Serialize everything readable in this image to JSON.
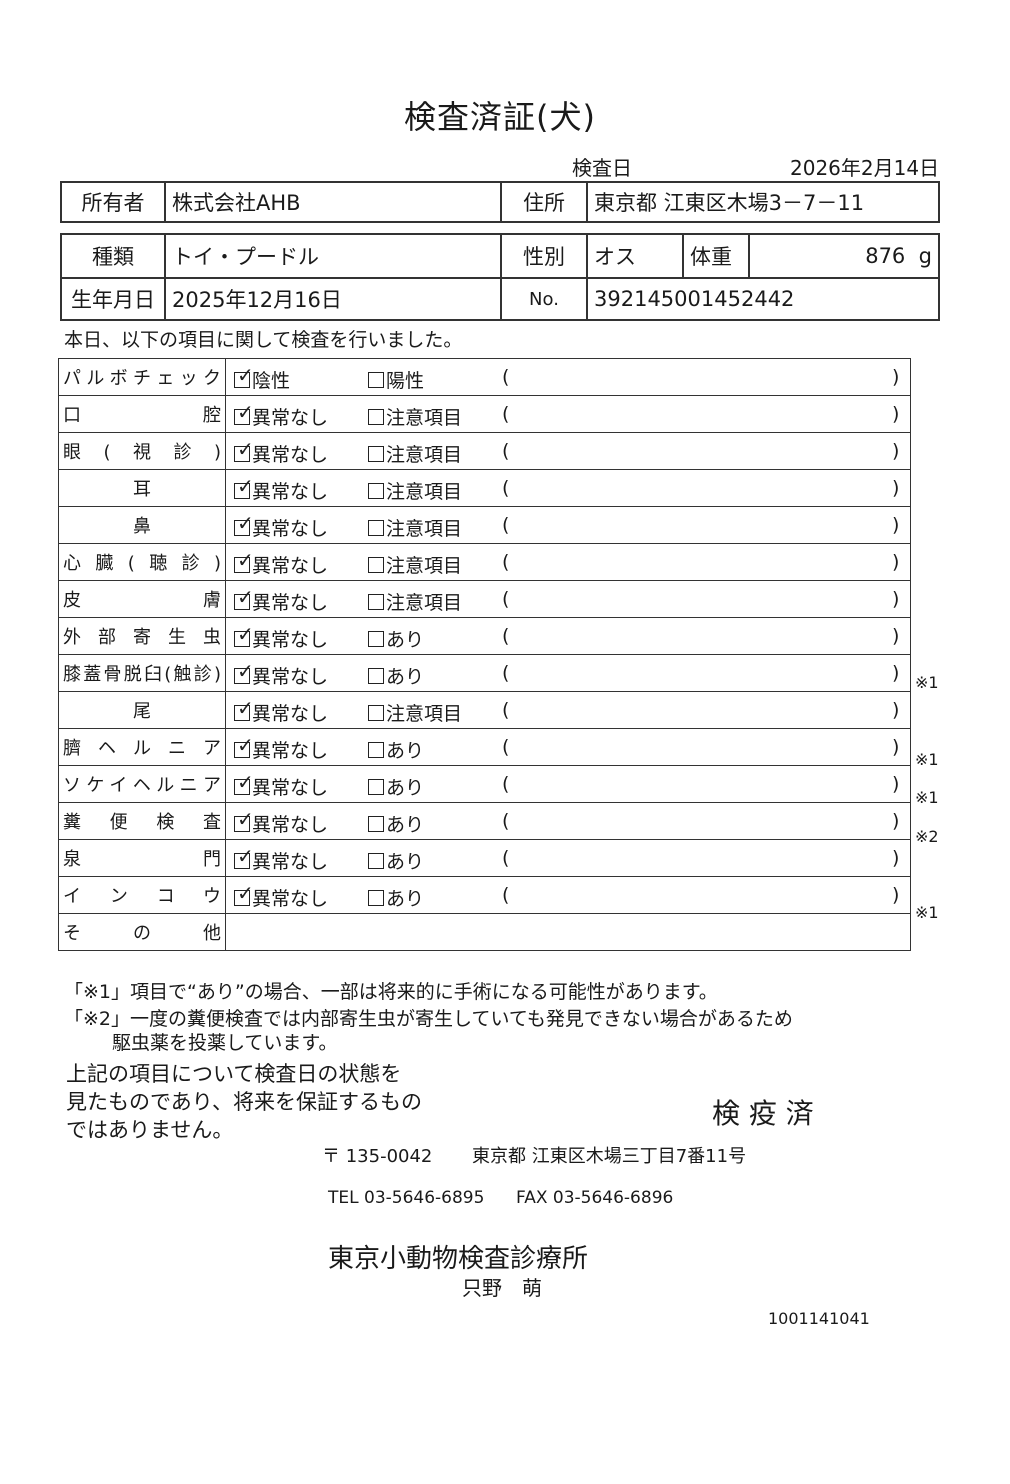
{
  "title": "検査済証(犬)",
  "exam_date_label": "検査日",
  "exam_date": "2026年2月14日",
  "owner": {
    "label": "所有者",
    "value": "株式会社AHB",
    "address_label": "住所",
    "address": "東京都 江東区木場3－7－11"
  },
  "pet": {
    "breed_label": "種類",
    "breed": "トイ・プードル",
    "sex_label": "性別",
    "sex": "オス",
    "weight_label": "体重",
    "weight": "876",
    "weight_unit": "g",
    "birth_label": "生年月日",
    "birth": "2025年12月16日",
    "no_label": "No.",
    "no": "392145001452442"
  },
  "intro": "本日、以下の項目に関して検査を行いました。",
  "checks": [
    {
      "label": "パルボチェック",
      "opt1": "陰性",
      "opt2": "陽性",
      "checked": 1,
      "note": ""
    },
    {
      "label": "口腔",
      "opt1": "異常なし",
      "opt2": "注意項目",
      "checked": 1,
      "note": ""
    },
    {
      "label": "眼(視診)",
      "opt1": "異常なし",
      "opt2": "注意項目",
      "checked": 1,
      "note": ""
    },
    {
      "label": "耳",
      "opt1": "異常なし",
      "opt2": "注意項目",
      "checked": 1,
      "note": ""
    },
    {
      "label": "鼻",
      "opt1": "異常なし",
      "opt2": "注意項目",
      "checked": 1,
      "note": ""
    },
    {
      "label": "心臓(聴診)",
      "opt1": "異常なし",
      "opt2": "注意項目",
      "checked": 1,
      "note": ""
    },
    {
      "label": "皮膚",
      "opt1": "異常なし",
      "opt2": "注意項目",
      "checked": 1,
      "note": ""
    },
    {
      "label": "外部寄生虫",
      "opt1": "異常なし",
      "opt2": "あり",
      "checked": 1,
      "note": ""
    },
    {
      "label": "膝蓋骨脱臼(触診)",
      "opt1": "異常なし",
      "opt2": "あり",
      "checked": 1,
      "note": "※1"
    },
    {
      "label": "尾",
      "opt1": "異常なし",
      "opt2": "注意項目",
      "checked": 1,
      "note": ""
    },
    {
      "label": "臍ヘルニア",
      "opt1": "異常なし",
      "opt2": "あり",
      "checked": 1,
      "note": "※1"
    },
    {
      "label": "ソケイヘルニア",
      "opt1": "異常なし",
      "opt2": "あり",
      "checked": 1,
      "note": "※1"
    },
    {
      "label": "糞便検査",
      "opt1": "異常なし",
      "opt2": "あり",
      "checked": 1,
      "note": "※2"
    },
    {
      "label": "泉門",
      "opt1": "異常なし",
      "opt2": "あり",
      "checked": 1,
      "note": ""
    },
    {
      "label": "インコウ",
      "opt1": "異常なし",
      "opt2": "あり",
      "checked": 1,
      "note": "※1"
    }
  ],
  "other_label": "その他",
  "notes": {
    "n1": "「※1」項目で“あり”の場合、一部は将来的に手術になる可能性があります。",
    "n2a": "「※2」一度の糞便検査では内部寄生虫が寄生していても発見できない場合があるため",
    "n2b": "駆虫薬を投薬しています。"
  },
  "disclaimer": [
    "上記の項目について検査日の状態を",
    "見たものであり、将来を保証するもの",
    "ではありません。"
  ],
  "stamp": "検 疫 済",
  "clinic": {
    "postal": "〒 135-0042",
    "address": "東京都 江東区木場三丁目7番11号",
    "tel": "TEL 03-5646-6895",
    "fax": "FAX 03-5646-6896",
    "name": "東京小動物検査診療所",
    "doctor": "只野　萌"
  },
  "serial": "1001141041"
}
